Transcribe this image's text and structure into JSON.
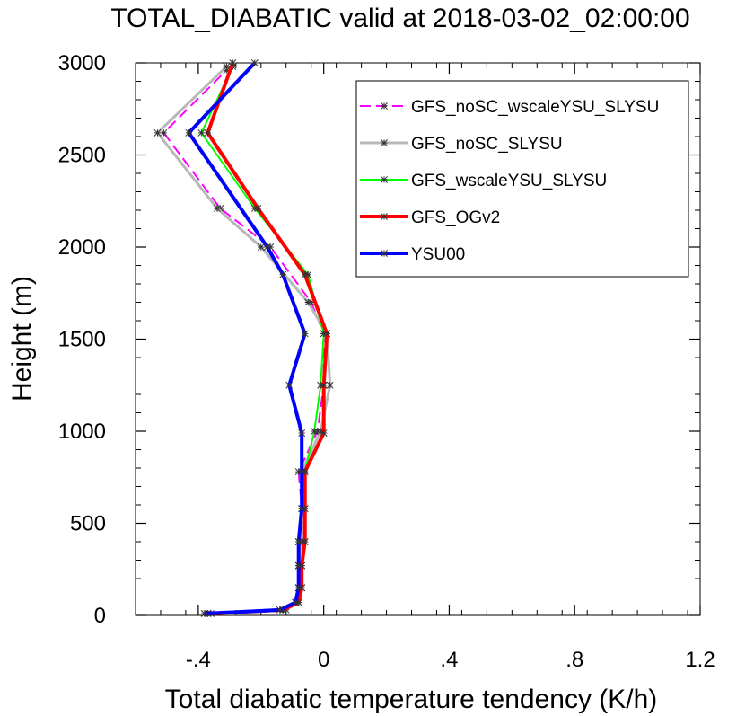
{
  "chart_data": {
    "type": "line",
    "title": "TOTAL_DIABATIC valid at 2018-03-02_02:00:00",
    "xlabel": "Total diabatic temperature tendency (K/h)",
    "ylabel": "Height (m)",
    "xlim": [
      -0.6,
      1.2
    ],
    "ylim": [
      0,
      3000
    ],
    "x_ticks": [
      -0.4,
      0,
      0.4,
      0.8,
      1.2
    ],
    "x_tick_labels": [
      "-.4",
      "0",
      ".4",
      ".8",
      "1.2"
    ],
    "y_ticks": [
      0,
      500,
      1000,
      1500,
      2000,
      2500,
      3000
    ],
    "y_tick_labels": [
      "0",
      "500",
      "1000",
      "1500",
      "2000",
      "2500",
      "3000"
    ],
    "grid": false,
    "legend_position": "top-right",
    "series": [
      {
        "name": "GFS_noSC_wscaleYSU_SLYSU",
        "color": "#ff00ff",
        "dash": "dashed",
        "width": 2,
        "points": [
          [
            -0.37,
            10
          ],
          [
            -0.12,
            30
          ],
          [
            -0.09,
            70
          ],
          [
            -0.08,
            150
          ],
          [
            -0.08,
            270
          ],
          [
            -0.08,
            400
          ],
          [
            -0.07,
            580
          ],
          [
            -0.08,
            780
          ],
          [
            -0.02,
            1000
          ],
          [
            0.0,
            1250
          ],
          [
            0.0,
            1530
          ],
          [
            -0.04,
            1700
          ],
          [
            -0.17,
            2000
          ],
          [
            -0.33,
            2210
          ],
          [
            -0.51,
            2620
          ],
          [
            -0.31,
            2960
          ]
        ]
      },
      {
        "name": "GFS_noSC_SLYSU",
        "color": "#b8b8b8",
        "dash": "solid",
        "width": 3,
        "points": [
          [
            -0.38,
            10
          ],
          [
            -0.13,
            30
          ],
          [
            -0.09,
            70
          ],
          [
            -0.08,
            150
          ],
          [
            -0.08,
            270
          ],
          [
            -0.07,
            400
          ],
          [
            -0.07,
            580
          ],
          [
            -0.07,
            780
          ],
          [
            -0.01,
            1000
          ],
          [
            0.02,
            1250
          ],
          [
            0.01,
            1530
          ],
          [
            -0.05,
            1700
          ],
          [
            -0.2,
            2000
          ],
          [
            -0.34,
            2210
          ],
          [
            -0.53,
            2620
          ],
          [
            -0.31,
            2980
          ]
        ]
      },
      {
        "name": "GFS_wscaleYSU_SLYSU",
        "color": "#00ff00",
        "dash": "solid",
        "width": 2,
        "points": [
          [
            -0.37,
            10
          ],
          [
            -0.13,
            30
          ],
          [
            -0.08,
            70
          ],
          [
            -0.07,
            150
          ],
          [
            -0.07,
            270
          ],
          [
            -0.06,
            400
          ],
          [
            -0.06,
            580
          ],
          [
            -0.06,
            780
          ],
          [
            -0.03,
            1000
          ],
          [
            -0.01,
            1250
          ],
          [
            0.0,
            1530
          ],
          [
            -0.05,
            1850
          ],
          [
            -0.22,
            2210
          ],
          [
            -0.39,
            2620
          ],
          [
            -0.29,
            2980
          ]
        ]
      },
      {
        "name": "GFS_OGv2",
        "color": "#ff0000",
        "dash": "solid",
        "width": 4,
        "points": [
          [
            -0.36,
            10
          ],
          [
            -0.13,
            30
          ],
          [
            -0.08,
            70
          ],
          [
            -0.07,
            150
          ],
          [
            -0.07,
            270
          ],
          [
            -0.06,
            400
          ],
          [
            -0.06,
            580
          ],
          [
            -0.06,
            780
          ],
          [
            0.0,
            990
          ],
          [
            0.0,
            1250
          ],
          [
            0.01,
            1530
          ],
          [
            -0.06,
            1850
          ],
          [
            -0.21,
            2210
          ],
          [
            -0.37,
            2620
          ],
          [
            -0.29,
            3000
          ]
        ]
      },
      {
        "name": "YSU00",
        "color": "#0000ff",
        "dash": "solid",
        "width": 4,
        "points": [
          [
            -0.38,
            10
          ],
          [
            -0.14,
            30
          ],
          [
            -0.09,
            70
          ],
          [
            -0.08,
            150
          ],
          [
            -0.08,
            270
          ],
          [
            -0.08,
            400
          ],
          [
            -0.07,
            580
          ],
          [
            -0.07,
            780
          ],
          [
            -0.07,
            990
          ],
          [
            -0.11,
            1250
          ],
          [
            -0.06,
            1530
          ],
          [
            -0.13,
            1850
          ],
          [
            -0.18,
            2000
          ],
          [
            -0.43,
            2620
          ],
          [
            -0.22,
            3000
          ]
        ]
      }
    ]
  }
}
